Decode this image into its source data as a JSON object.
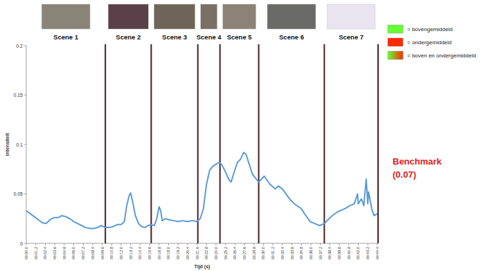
{
  "chart_data": {
    "type": "line",
    "x_label": "Tijd (s)",
    "y_label": "Intensiteit",
    "x": [
      0,
      0.5,
      1,
      1.5,
      2,
      2.5,
      3,
      3.5,
      4,
      4.5,
      5,
      5.5,
      6,
      6.5,
      7,
      7.5,
      8,
      8.5,
      9,
      9.5,
      10,
      10.5,
      11,
      11.5,
      12,
      12.4,
      12.7,
      13,
      13.2,
      13.5,
      13.8,
      14.2,
      14.6,
      15,
      15.4,
      15.8,
      16.2,
      16.5,
      16.8,
      17,
      17.2,
      17.6,
      18,
      18.6,
      19.2,
      19.8,
      20.4,
      21,
      21.6,
      22,
      22.4,
      22.8,
      23.2,
      23.6,
      24,
      24.4,
      24.7,
      25.1,
      25.6,
      25.9,
      26.3,
      26.7,
      27.1,
      27.5,
      27.8,
      28.2,
      28.6,
      29.1,
      29.4,
      30.1,
      30.8,
      31.5,
      31.9,
      32.4,
      33.3,
      33.9,
      34.8,
      35.2,
      35.9,
      36.5,
      37.1,
      37.7,
      38.3,
      38.7,
      39.4,
      40.3,
      40.9,
      41.5,
      41.9,
      42,
      42.4,
      42.7,
      43,
      43.2,
      43.3,
      43.7,
      44,
      44.4
    ],
    "series": [
      {
        "color": "#5b9bd5",
        "values": [
          0.033,
          0.03,
          0.027,
          0.024,
          0.021,
          0.02,
          0.024,
          0.026,
          0.026,
          0.028,
          0.027,
          0.025,
          0.022,
          0.02,
          0.018,
          0.016,
          0.015,
          0.015,
          0.016,
          0.018,
          0.016,
          0.016,
          0.017,
          0.019,
          0.019,
          0.022,
          0.038,
          0.048,
          0.051,
          0.04,
          0.028,
          0.02,
          0.017,
          0.016,
          0.018,
          0.019,
          0.018,
          0.025,
          0.037,
          0.033,
          0.023,
          0.025,
          0.024,
          0.023,
          0.022,
          0.023,
          0.022,
          0.023,
          0.022,
          0.025,
          0.035,
          0.06,
          0.074,
          0.078,
          0.08,
          0.082,
          0.08,
          0.074,
          0.065,
          0.062,
          0.072,
          0.082,
          0.085,
          0.092,
          0.09,
          0.08,
          0.07,
          0.065,
          0.062,
          0.068,
          0.06,
          0.055,
          0.058,
          0.055,
          0.045,
          0.04,
          0.035,
          0.03,
          0.022,
          0.02,
          0.018,
          0.02,
          0.025,
          0.028,
          0.032,
          0.035,
          0.038,
          0.04,
          0.05,
          0.04,
          0.045,
          0.038,
          0.065,
          0.04,
          0.052,
          0.035,
          0.028,
          0.03
        ]
      }
    ],
    "xlim": [
      0,
      44.5
    ],
    "xticks": [
      {
        "value": 0,
        "label": "00:00.0"
      },
      {
        "value": 1.2,
        "label": "00:01.2"
      },
      {
        "value": 2.4,
        "label": "00:02.4"
      },
      {
        "value": 3.6,
        "label": "00:03.6"
      },
      {
        "value": 4.8,
        "label": "00:04.8"
      },
      {
        "value": 6,
        "label": "00:06.0"
      },
      {
        "value": 7.2,
        "label": "00:07.2"
      },
      {
        "value": 8.4,
        "label": "00:08.4"
      },
      {
        "value": 9.6,
        "label": "00:09.6"
      },
      {
        "value": 10.8,
        "label": "00:10.8"
      },
      {
        "value": 12,
        "label": "00:12.0"
      },
      {
        "value": 13.2,
        "label": "00:13.2"
      },
      {
        "value": 14.4,
        "label": "00:14.4"
      },
      {
        "value": 15.6,
        "label": "00:15.6"
      },
      {
        "value": 16.8,
        "label": "00:16.8"
      },
      {
        "value": 18,
        "label": "00:18.0"
      },
      {
        "value": 19.2,
        "label": "00:19.2"
      },
      {
        "value": 20.4,
        "label": "00:20.4"
      },
      {
        "value": 21.6,
        "label": "00:21.6"
      },
      {
        "value": 22.8,
        "label": "00:22.8"
      },
      {
        "value": 24,
        "label": "00:24.0"
      },
      {
        "value": 25.2,
        "label": "00:25.2"
      },
      {
        "value": 26.4,
        "label": "00:26.4"
      },
      {
        "value": 27.6,
        "label": "00:27.6"
      },
      {
        "value": 28.8,
        "label": "00:28.8"
      },
      {
        "value": 30,
        "label": "00:30.0"
      },
      {
        "value": 31.2,
        "label": "00:31.2"
      },
      {
        "value": 32.4,
        "label": "00:32.4"
      },
      {
        "value": 33.6,
        "label": "00:33.6"
      },
      {
        "value": 34.8,
        "label": "00:34.8"
      },
      {
        "value": 36,
        "label": "00:36.0"
      },
      {
        "value": 37.2,
        "label": "00:37.2"
      },
      {
        "value": 38.4,
        "label": "00:38.4"
      },
      {
        "value": 39.6,
        "label": "00:39.6"
      },
      {
        "value": 40.8,
        "label": "00:40.8"
      },
      {
        "value": 42,
        "label": "00:42.0"
      },
      {
        "value": 43.2,
        "label": "00:43.2"
      },
      {
        "value": 44.4,
        "label": "00:44.4"
      }
    ],
    "ylim": [
      0,
      0.2
    ],
    "yticks": [
      0,
      0.05,
      0.1,
      0.15,
      0.2
    ],
    "grid": false,
    "scene_labels": [
      "Scene 1",
      "Scene 2",
      "Scene 3",
      "Scene 4",
      "Scene 5",
      "Scene 6",
      "Scene 7"
    ],
    "scene_boundaries": [
      10.0,
      15.8,
      21.7,
      24.5,
      29.4,
      37.7,
      44.5
    ],
    "legend_items": [
      {
        "label": "= bovengemiddeld",
        "color": "#66ff33"
      },
      {
        "label": "= ondergemiddeld",
        "color": "#ff2a00"
      },
      {
        "label": "= boven en ondergemiddeld",
        "colors": [
          "#66ff33",
          "#ff2a00"
        ]
      }
    ],
    "annotations": [
      "Benchmark",
      "(0.07)"
    ]
  }
}
